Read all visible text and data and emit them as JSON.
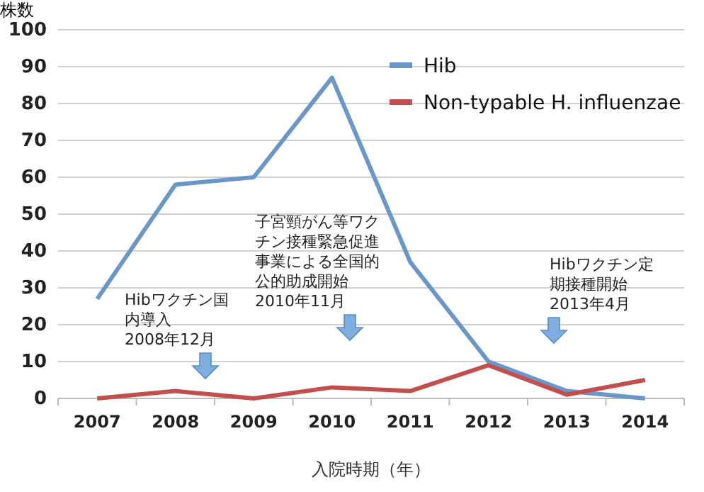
{
  "chart_data": {
    "type": "line",
    "ylabel": "株数",
    "xlabel": "入院時期（年）",
    "categories": [
      "2007",
      "2008",
      "2009",
      "2010",
      "2011",
      "2012",
      "2013",
      "2014"
    ],
    "series": [
      {
        "name": "Hib",
        "color": "#6a96c8",
        "values": [
          27,
          58,
          60,
          87,
          37,
          10,
          2,
          0
        ]
      },
      {
        "name": "Non-typable H. influenzae",
        "color": "#c0504d",
        "values": [
          0,
          2,
          0,
          3,
          2,
          9,
          1,
          5
        ]
      }
    ],
    "ylim": [
      0,
      100
    ],
    "yticks": [
      0,
      10,
      20,
      30,
      40,
      50,
      60,
      70,
      80,
      90,
      100
    ],
    "grid": "y",
    "legend": "top right",
    "marker": "none",
    "line_style": "solid",
    "annotations": [
      "Hibワクチン国内導入2008年12月",
      "子宮頸がん等ワクチン接種緊急促進事業による全国的公的助成開始2010年11月",
      "Hibワクチン定期接種開始2013年4月"
    ]
  }
}
